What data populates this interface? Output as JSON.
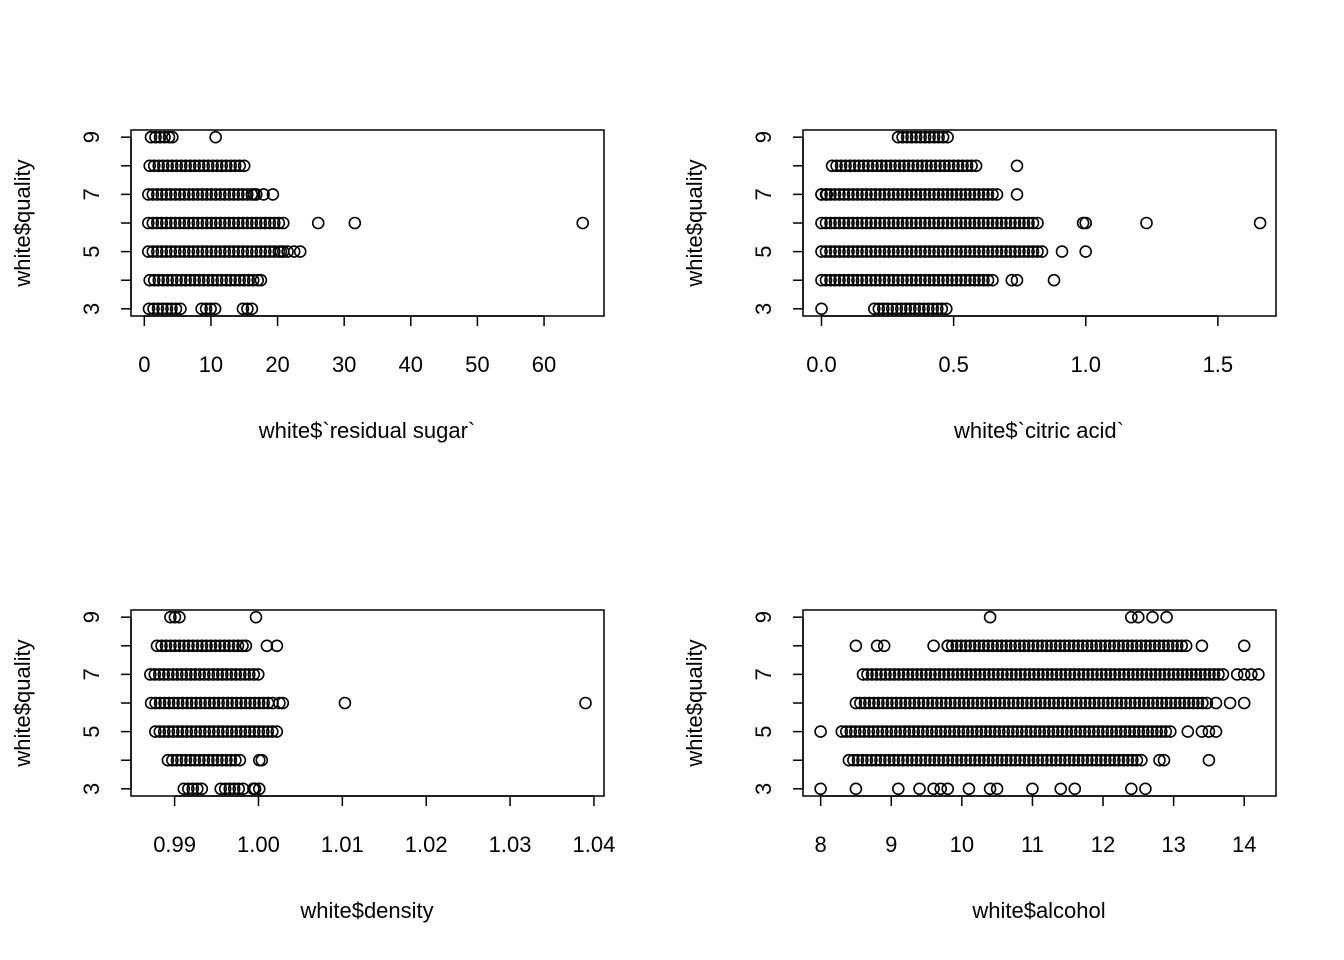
{
  "chart_data": [
    {
      "type": "scatter",
      "xlabel": "white$`residual sugar`",
      "ylabel": "white$quality",
      "xlim": [
        -2,
        69
      ],
      "ylim": [
        2.75,
        9.25
      ],
      "xticks": [
        0,
        10,
        20,
        30,
        40,
        50,
        60
      ],
      "xtick_labels": [
        "0",
        "10",
        "20",
        "30",
        "40",
        "50",
        "60"
      ],
      "yticks": [
        3,
        5,
        7,
        9
      ],
      "ytick_labels": [
        "3",
        "5",
        "7",
        "9"
      ],
      "grid": false,
      "band_ranges": [
        [
          3,
          0.7,
          6.0
        ],
        [
          3,
          8.6,
          11.0
        ],
        [
          3,
          14.8,
          16.5
        ],
        [
          4,
          0.8,
          17.5
        ],
        [
          5,
          0.6,
          21.0
        ],
        [
          6,
          0.6,
          21.0
        ],
        [
          7,
          0.6,
          17.0
        ],
        [
          8,
          0.8,
          15.5
        ],
        [
          9,
          1.0,
          4.0
        ]
      ],
      "points": [
        [
          10.7,
          9
        ],
        [
          4.2,
          9
        ],
        [
          17.5,
          4
        ],
        [
          20.5,
          5
        ],
        [
          21.5,
          5
        ],
        [
          22.5,
          5
        ],
        [
          23.4,
          5
        ],
        [
          26.1,
          6
        ],
        [
          31.6,
          6
        ],
        [
          65.8,
          6
        ],
        [
          16.5,
          7
        ],
        [
          17.9,
          7
        ],
        [
          19.3,
          7
        ]
      ]
    },
    {
      "type": "scatter",
      "xlabel": "white$`citric acid`",
      "ylabel": "white$quality",
      "xlim": [
        -0.07,
        1.72
      ],
      "ylim": [
        2.75,
        9.25
      ],
      "xticks": [
        0.0,
        0.5,
        1.0,
        1.5
      ],
      "xtick_labels": [
        "0.0",
        "0.5",
        "1.0",
        "1.5"
      ],
      "yticks": [
        3,
        5,
        7,
        9
      ],
      "ytick_labels": [
        "3",
        "5",
        "7",
        "9"
      ],
      "grid": false,
      "band_ranges": [
        [
          3,
          0.2,
          0.48
        ],
        [
          4,
          0.0,
          0.65
        ],
        [
          5,
          0.0,
          0.85
        ],
        [
          6,
          0.0,
          0.82
        ],
        [
          7,
          0.0,
          0.68
        ],
        [
          8,
          0.04,
          0.6
        ],
        [
          9,
          0.29,
          0.49
        ]
      ],
      "points": [
        [
          0.0,
          3
        ],
        [
          0.74,
          4
        ],
        [
          0.72,
          4
        ],
        [
          0.88,
          4
        ],
        [
          1.0,
          5
        ],
        [
          0.91,
          5
        ],
        [
          1.0,
          6
        ],
        [
          0.99,
          6
        ],
        [
          1.23,
          6
        ],
        [
          1.66,
          6
        ],
        [
          0.74,
          7
        ],
        [
          0.74,
          8
        ],
        [
          0.0,
          7
        ],
        [
          0.02,
          7
        ]
      ]
    },
    {
      "type": "scatter",
      "xlabel": "white$density",
      "ylabel": "white$quality",
      "xlim": [
        0.9848,
        1.0412
      ],
      "ylim": [
        2.75,
        9.25
      ],
      "xticks": [
        0.99,
        1.0,
        1.01,
        1.02,
        1.03,
        1.04
      ],
      "xtick_labels": [
        "0.99",
        "1.00",
        "1.01",
        "1.02",
        "1.03",
        "1.04"
      ],
      "yticks": [
        3,
        5,
        7,
        9
      ],
      "ytick_labels": [
        "3",
        "5",
        "7",
        "9"
      ],
      "grid": false,
      "band_ranges": [
        [
          3,
          0.9911,
          0.9935
        ],
        [
          3,
          0.9955,
          0.9985
        ],
        [
          4,
          0.9892,
          0.9982
        ],
        [
          5,
          0.9877,
          1.0023
        ],
        [
          6,
          0.9872,
          1.0018
        ],
        [
          7,
          0.9871,
          1.0005
        ],
        [
          8,
          0.9879,
          0.9986
        ],
        [
          9,
          0.9895,
          0.9906
        ]
      ],
      "points": [
        [
          1.0001,
          3
        ],
        [
          0.9994,
          3
        ],
        [
          0.9996,
          3
        ],
        [
          1.0004,
          4
        ],
        [
          1.0001,
          4
        ],
        [
          1.0025,
          6
        ],
        [
          1.0029,
          6
        ],
        [
          1.0103,
          6
        ],
        [
          1.039,
          6
        ],
        [
          0.9997,
          9
        ],
        [
          1.001,
          8
        ],
        [
          1.0022,
          8
        ],
        [
          0.9985,
          8
        ]
      ]
    },
    {
      "type": "scatter",
      "xlabel": "white$alcohol",
      "ylabel": "white$quality",
      "xlim": [
        7.75,
        14.45
      ],
      "ylim": [
        2.75,
        9.25
      ],
      "xticks": [
        8,
        9,
        10,
        11,
        12,
        13,
        14
      ],
      "xtick_labels": [
        "8",
        "9",
        "10",
        "11",
        "12",
        "13",
        "14"
      ],
      "yticks": [
        3,
        5,
        7,
        9
      ],
      "ytick_labels": [
        "3",
        "5",
        "7",
        "9"
      ],
      "grid": false,
      "band_ranges": [
        [
          4,
          8.4,
          12.6
        ],
        [
          4,
          12.8,
          12.9
        ],
        [
          5,
          8.3,
          13.0
        ],
        [
          6,
          8.5,
          13.5
        ],
        [
          7,
          8.6,
          13.7
        ],
        [
          8,
          9.8,
          13.2
        ]
      ],
      "points": [
        [
          8.0,
          3
        ],
        [
          8.5,
          3
        ],
        [
          9.1,
          3
        ],
        [
          9.4,
          3
        ],
        [
          9.6,
          3
        ],
        [
          9.7,
          3
        ],
        [
          9.8,
          3
        ],
        [
          10.1,
          3
        ],
        [
          10.4,
          3
        ],
        [
          10.5,
          3
        ],
        [
          11.0,
          3
        ],
        [
          11.4,
          3
        ],
        [
          11.6,
          3
        ],
        [
          12.4,
          3
        ],
        [
          12.6,
          3
        ],
        [
          8.0,
          5
        ],
        [
          13.2,
          5
        ],
        [
          13.4,
          5
        ],
        [
          13.5,
          5
        ],
        [
          13.6,
          5
        ],
        [
          13.5,
          4
        ],
        [
          13.6,
          6
        ],
        [
          13.8,
          6
        ],
        [
          14.0,
          6
        ],
        [
          13.9,
          7
        ],
        [
          14.0,
          7
        ],
        [
          14.1,
          7
        ],
        [
          14.2,
          7
        ],
        [
          14.0,
          8
        ],
        [
          13.4,
          8
        ],
        [
          8.5,
          8
        ],
        [
          8.8,
          8
        ],
        [
          8.9,
          8
        ],
        [
          9.6,
          8
        ],
        [
          9.8,
          8
        ],
        [
          10.4,
          9
        ],
        [
          12.4,
          9
        ],
        [
          12.5,
          9
        ],
        [
          12.7,
          9
        ],
        [
          12.9,
          9
        ]
      ]
    }
  ]
}
